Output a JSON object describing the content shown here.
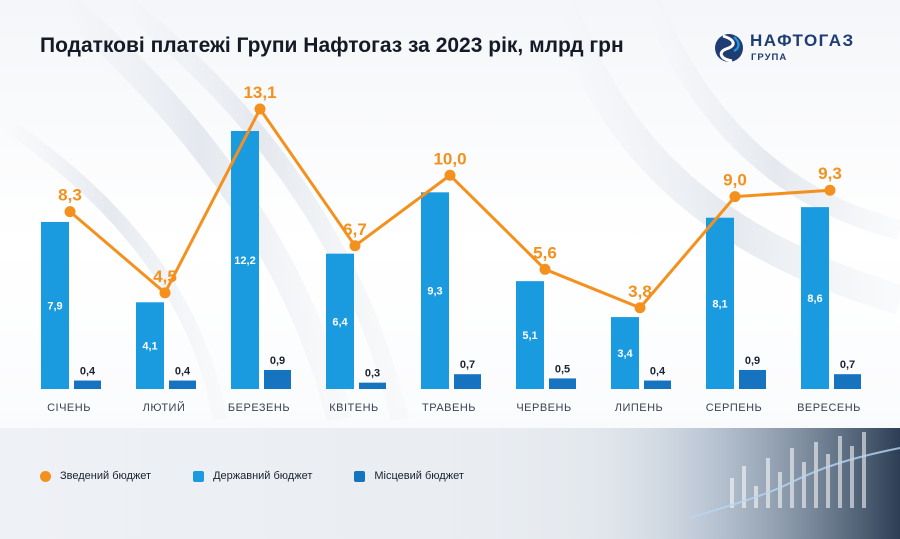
{
  "header": {
    "title": "Податкові платежі Групи Нафтогаз за 2023 рік, млрд грн"
  },
  "logo": {
    "word": "НАФТОГАЗ",
    "sub": "ГРУПА",
    "colors": {
      "navy": "#1f3c73",
      "blue": "#2196d6"
    }
  },
  "colors": {
    "consolidated": "#f4901e",
    "state": "#1a9be0",
    "local": "#1673bf"
  },
  "chart_data": {
    "type": "bar",
    "categories": [
      "СІЧЕНЬ",
      "ЛЮТИЙ",
      "БЕРЕЗЕНЬ",
      "КВІТЕНЬ",
      "ТРАВЕНЬ",
      "ЧЕРВЕНЬ",
      "ЛИПЕНЬ",
      "СЕРПЕНЬ",
      "ВЕРЕСЕНЬ"
    ],
    "series": [
      {
        "name": "Зведений бюджет",
        "kind": "line",
        "values": [
          8.3,
          4.5,
          13.1,
          6.7,
          10.0,
          5.6,
          3.8,
          9.0,
          9.3
        ],
        "labels": [
          "8,3",
          "4,5",
          "13,1",
          "6,7",
          "10,0",
          "5,6",
          "3,8",
          "9,0",
          "9,3"
        ]
      },
      {
        "name": "Державний бюджет",
        "kind": "bar",
        "values": [
          7.9,
          4.1,
          12.2,
          6.4,
          9.3,
          5.1,
          3.4,
          8.1,
          8.6
        ],
        "labels": [
          "7,9",
          "4,1",
          "12,2",
          "6,4",
          "9,3",
          "5,1",
          "3,4",
          "8,1",
          "8,6"
        ]
      },
      {
        "name": "Місцевий бюджет",
        "kind": "bar",
        "values": [
          0.4,
          0.4,
          0.9,
          0.3,
          0.7,
          0.5,
          0.4,
          0.9,
          0.7
        ],
        "labels": [
          "0,4",
          "0,4",
          "0,9",
          "0,3",
          "0,7",
          "0,5",
          "0,4",
          "0,9",
          "0,7"
        ]
      }
    ],
    "legend_position": "bottom-left",
    "grid": false
  },
  "legend": [
    {
      "label": "Зведений бюджет",
      "shape": "dot",
      "color": "#f4901e"
    },
    {
      "label": "Державний бюджет",
      "shape": "square",
      "color": "#1a9be0"
    },
    {
      "label": "Місцевий бюджет",
      "shape": "square",
      "color": "#1673bf"
    }
  ]
}
